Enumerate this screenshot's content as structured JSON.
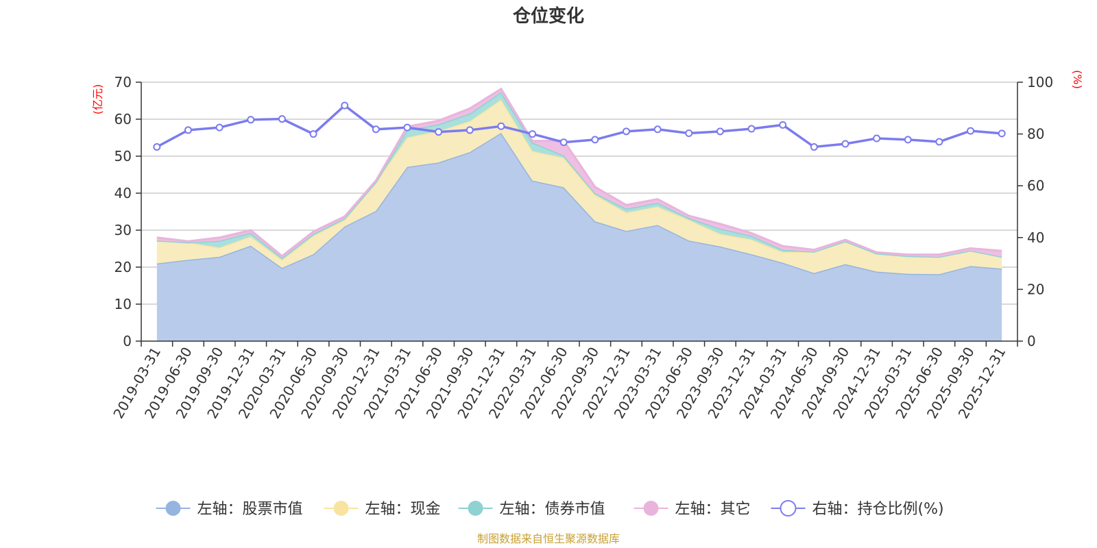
{
  "chart_data": {
    "type": "area",
    "title": "仓位变化",
    "left_unit": "(亿元)",
    "right_unit": "(%)",
    "source": "制图数据来自恒生聚源数据库",
    "categories": [
      "2019-03-31",
      "2019-06-30",
      "2019-09-30",
      "2019-12-31",
      "2020-03-31",
      "2020-06-30",
      "2020-09-30",
      "2020-12-31",
      "2021-03-31",
      "2021-06-30",
      "2021-09-30",
      "2021-12-31",
      "2022-03-31",
      "2022-06-30",
      "2022-09-30",
      "2022-12-31",
      "2023-03-31",
      "2023-06-30",
      "2023-09-30",
      "2023-12-31",
      "2024-03-31",
      "2024-06-30",
      "2024-09-30",
      "2024-12-31",
      "2025-03-31",
      "2025-06-30",
      "2025-09-30",
      "2025-12-31"
    ],
    "left_axis": {
      "min": 0,
      "max": 70,
      "ticks": [
        0,
        10,
        20,
        30,
        40,
        50,
        60,
        70
      ]
    },
    "right_axis": {
      "min": 0,
      "max": 100,
      "ticks": [
        0,
        20,
        40,
        60,
        80,
        100
      ]
    },
    "series": [
      {
        "name": "左轴：股票市值",
        "axis": "left",
        "color": "#96b4e0",
        "fill": "#b8cbea",
        "values": [
          21.0,
          22.0,
          22.8,
          25.8,
          19.8,
          23.5,
          31.0,
          35.2,
          47.1,
          48.3,
          51.1,
          56.3,
          43.4,
          41.6,
          32.4,
          29.8,
          31.4,
          27.2,
          25.6,
          23.5,
          21.2,
          18.4,
          20.8,
          18.8,
          18.2,
          18.1,
          20.3,
          19.6
        ]
      },
      {
        "name": "左轴：现金",
        "axis": "left",
        "color": "#f8e4a0",
        "fill": "#f8ebbd",
        "values": [
          6.2,
          4.7,
          2.5,
          2.5,
          2.2,
          5.0,
          1.8,
          7.8,
          8.0,
          8.5,
          8.4,
          9.0,
          8.0,
          8.0,
          7.2,
          5.0,
          5.0,
          5.6,
          3.4,
          4.0,
          2.9,
          5.8,
          6.2,
          4.9,
          4.8,
          4.7,
          4.2,
          3.2
        ]
      },
      {
        "name": "左轴：债券市值",
        "axis": "left",
        "color": "#8ed2d2",
        "fill": "#a9dfdd",
        "values": [
          0.0,
          0.0,
          1.8,
          1.0,
          0.5,
          0.5,
          0.4,
          0.0,
          2.0,
          1.8,
          2.0,
          2.0,
          2.3,
          0.6,
          0.4,
          1.0,
          1.0,
          0.5,
          1.4,
          1.0,
          0.6,
          0.0,
          0.0,
          0.0,
          0.0,
          0.0,
          0.0,
          0.0
        ]
      },
      {
        "name": "左轴：其它",
        "axis": "left",
        "color": "#e8b4dc",
        "fill": "#eebfe2",
        "values": [
          0.8,
          0.3,
          0.9,
          0.7,
          0.5,
          0.6,
          0.5,
          0.4,
          0.9,
          1.0,
          1.4,
          0.9,
          0.4,
          4.0,
          1.7,
          1.0,
          1.0,
          0.6,
          1.3,
          0.7,
          1.0,
          0.5,
          0.4,
          0.3,
          0.4,
          0.6,
          0.6,
          1.6
        ]
      },
      {
        "name": "右轴：持仓比例(%)",
        "axis": "right",
        "color": "#7b7bef",
        "values": [
          75.0,
          81.5,
          82.5,
          85.5,
          85.8,
          80.0,
          91.0,
          81.8,
          82.5,
          80.8,
          81.5,
          83.0,
          80.0,
          76.8,
          77.8,
          81.0,
          81.8,
          80.3,
          81.0,
          82.0,
          83.5,
          75.0,
          76.2,
          78.3,
          77.8,
          77.0,
          81.2,
          80.2
        ]
      }
    ]
  }
}
